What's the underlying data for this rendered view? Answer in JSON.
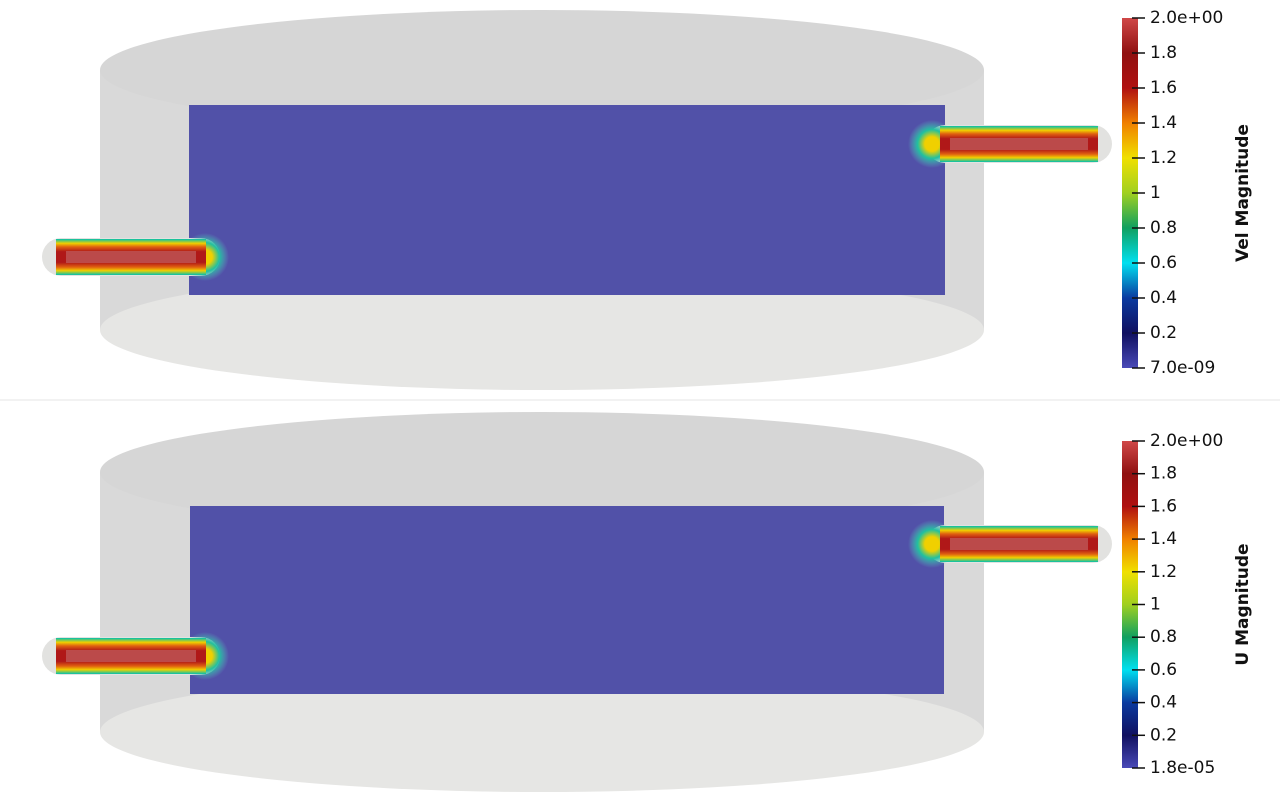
{
  "panels": [
    {
      "colorbar": {
        "title": "Vel Magnitude",
        "ticks": [
          "2.0e+00",
          "1.8",
          "1.6",
          "1.4",
          "1.2",
          "1",
          "0.8",
          "0.6",
          "0.4",
          "0.2",
          "7.0e-09"
        ]
      }
    },
    {
      "colorbar": {
        "title": "U Magnitude",
        "ticks": [
          "2.0e+00",
          "1.8",
          "1.6",
          "1.4",
          "1.2",
          "1",
          "0.8",
          "0.6",
          "0.4",
          "0.2",
          "1.8e-05"
        ]
      }
    }
  ]
}
